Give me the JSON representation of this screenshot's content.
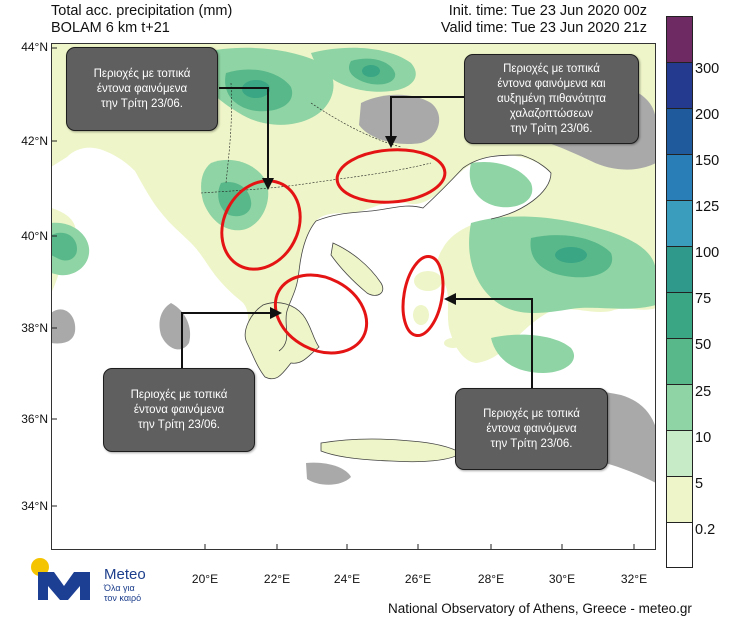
{
  "header": {
    "title_line1": "Total acc. precipitation (mm)",
    "title_line2": "BOLAM 6 km t+21",
    "init_time": "Init. time: Tue 23 Jun 2020 00z",
    "valid_time": "Valid time: Tue 23 Jun 2020 21z"
  },
  "axes": {
    "lat_labels": [
      "44°N",
      "42°N",
      "40°N",
      "38°N",
      "36°N",
      "34°N"
    ],
    "lon_labels": [
      "20°E",
      "22°E",
      "24°E",
      "26°E",
      "28°E",
      "30°E",
      "32°E"
    ]
  },
  "colorbar": {
    "labels": [
      "300",
      "200",
      "150",
      "125",
      "100",
      "75",
      "50",
      "25",
      "10",
      "5",
      "0.2"
    ],
    "colors": [
      "#6e2a62",
      "#243a8e",
      "#1f5b9c",
      "#2a7eb8",
      "#3a9dbd",
      "#2f9a8c",
      "#3aa684",
      "#58b88a",
      "#8fd4a4",
      "#c6ebc6",
      "#eef5c8",
      "#ffffff"
    ]
  },
  "callouts": [
    {
      "id": "west",
      "lines": [
        "Περιοχές με τοπικά",
        "έντονα φαινόμενα",
        "την Τρίτη 23/06."
      ]
    },
    {
      "id": "northeast",
      "lines": [
        "Περιοχές με τοπικά",
        "έντονα φαινόμενα και",
        "αυξημένη πιθανότητα",
        "χαλαζοπτώσεων",
        "την Τρίτη 23/06."
      ]
    },
    {
      "id": "southwest",
      "lines": [
        "Περιοχές με τοπικά",
        "έντονα φαινόμενα",
        "την Τρίτη 23/06."
      ]
    },
    {
      "id": "southeast",
      "lines": [
        "Περιοχές με τοπικά",
        "έντονα φαινόμενα",
        "την Τρίτη 23/06."
      ]
    }
  ],
  "logo": {
    "name": "Meteo",
    "tagline_1": "Όλα για",
    "tagline_2": "τον καιρό"
  },
  "footer": {
    "credit": "National Observatory of Athens, Greece - meteo.gr"
  }
}
